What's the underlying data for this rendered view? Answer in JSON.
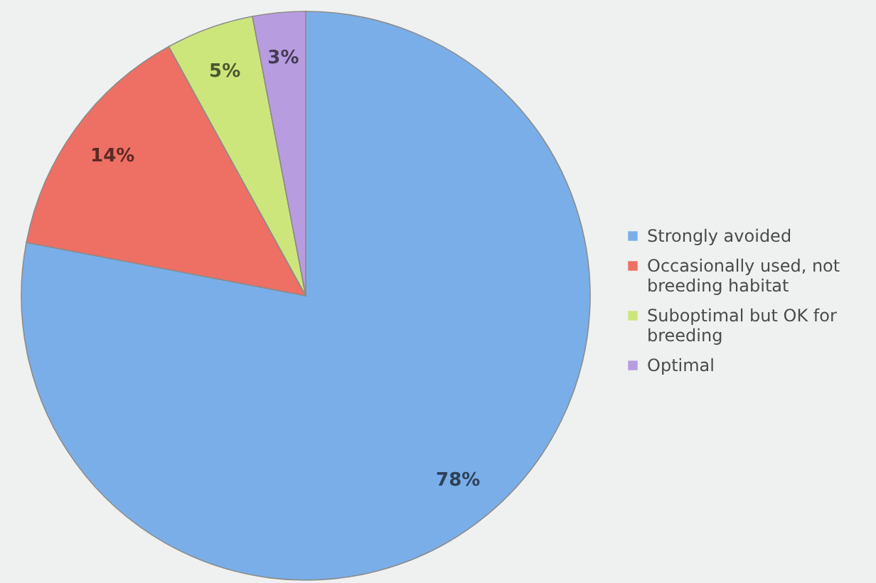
{
  "chart_data": {
    "type": "pie",
    "categories": [
      "Strongly avoided",
      "Occasionally used, not breeding habitat",
      "Suboptimal but OK for breeding",
      "Optimal"
    ],
    "values": [
      78,
      14,
      5,
      3
    ],
    "colors": [
      "#7aaee8",
      "#ee6f63",
      "#cde67c",
      "#b89ce0"
    ],
    "value_labels": [
      "78%",
      "14%",
      "5%",
      "3%"
    ],
    "legend": "right"
  }
}
